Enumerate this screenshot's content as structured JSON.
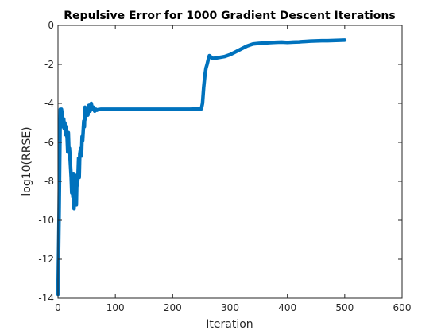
{
  "chart_data": {
    "type": "line",
    "title": "Repulsive Error for 1000 Gradient Descent Iterations",
    "xlabel": "Iteration",
    "ylabel": "log10(RRSE)",
    "xlim": [
      0,
      600
    ],
    "ylim": [
      -14,
      0
    ],
    "xticks": [
      0,
      100,
      200,
      300,
      400,
      500,
      600
    ],
    "yticks": [
      0,
      -2,
      -4,
      -6,
      -8,
      -10,
      -12,
      -14
    ],
    "grid": false,
    "series": [
      {
        "color": "#0072BD",
        "x": [
          0,
          2,
          4,
          5,
          6,
          7,
          8,
          9,
          10,
          11,
          12,
          13,
          14,
          15,
          16,
          17,
          18,
          19,
          20,
          21,
          22,
          23,
          24,
          25,
          26,
          27,
          28,
          29,
          30,
          31,
          32,
          33,
          34,
          35,
          36,
          37,
          38,
          39,
          40,
          41,
          42,
          43,
          44,
          45,
          46,
          47,
          48,
          49,
          50,
          52,
          54,
          56,
          58,
          60,
          62,
          64,
          66,
          68,
          70,
          75,
          80,
          90,
          100,
          120,
          150,
          200,
          230,
          250,
          252,
          254,
          256,
          258,
          260,
          262,
          264,
          266,
          268,
          270,
          280,
          290,
          300,
          310,
          320,
          330,
          340,
          350,
          360,
          370,
          380,
          390,
          400,
          410,
          420,
          430,
          440,
          450,
          460,
          470,
          480,
          490,
          500
        ],
        "y": [
          -13.8,
          -9.5,
          -4.3,
          -4.9,
          -4.3,
          -4.5,
          -5.2,
          -5.0,
          -4.8,
          -5.3,
          -5.0,
          -5.6,
          -5.2,
          -5.5,
          -5.8,
          -6.5,
          -5.5,
          -6.4,
          -6.3,
          -6.8,
          -7.3,
          -7.8,
          -8.6,
          -8.1,
          -8.8,
          -7.6,
          -9.4,
          -7.8,
          -8.7,
          -7.7,
          -9.2,
          -7.8,
          -8.2,
          -7.6,
          -6.8,
          -7.8,
          -6.6,
          -6.4,
          -6.3,
          -6.7,
          -5.7,
          -5.9,
          -5.4,
          -4.9,
          -5.2,
          -4.2,
          -4.8,
          -4.4,
          -4.3,
          -4.6,
          -4.1,
          -4.4,
          -4.0,
          -4.3,
          -4.2,
          -4.4,
          -4.3,
          -4.35,
          -4.32,
          -4.3,
          -4.3,
          -4.3,
          -4.3,
          -4.3,
          -4.3,
          -4.3,
          -4.3,
          -4.28,
          -4.0,
          -3.2,
          -2.6,
          -2.2,
          -2.0,
          -1.75,
          -1.55,
          -1.6,
          -1.65,
          -1.7,
          -1.65,
          -1.6,
          -1.5,
          -1.35,
          -1.2,
          -1.05,
          -0.95,
          -0.92,
          -0.9,
          -0.88,
          -0.86,
          -0.85,
          -0.87,
          -0.85,
          -0.84,
          -0.82,
          -0.8,
          -0.79,
          -0.78,
          -0.78,
          -0.77,
          -0.76,
          -0.75
        ]
      }
    ]
  }
}
